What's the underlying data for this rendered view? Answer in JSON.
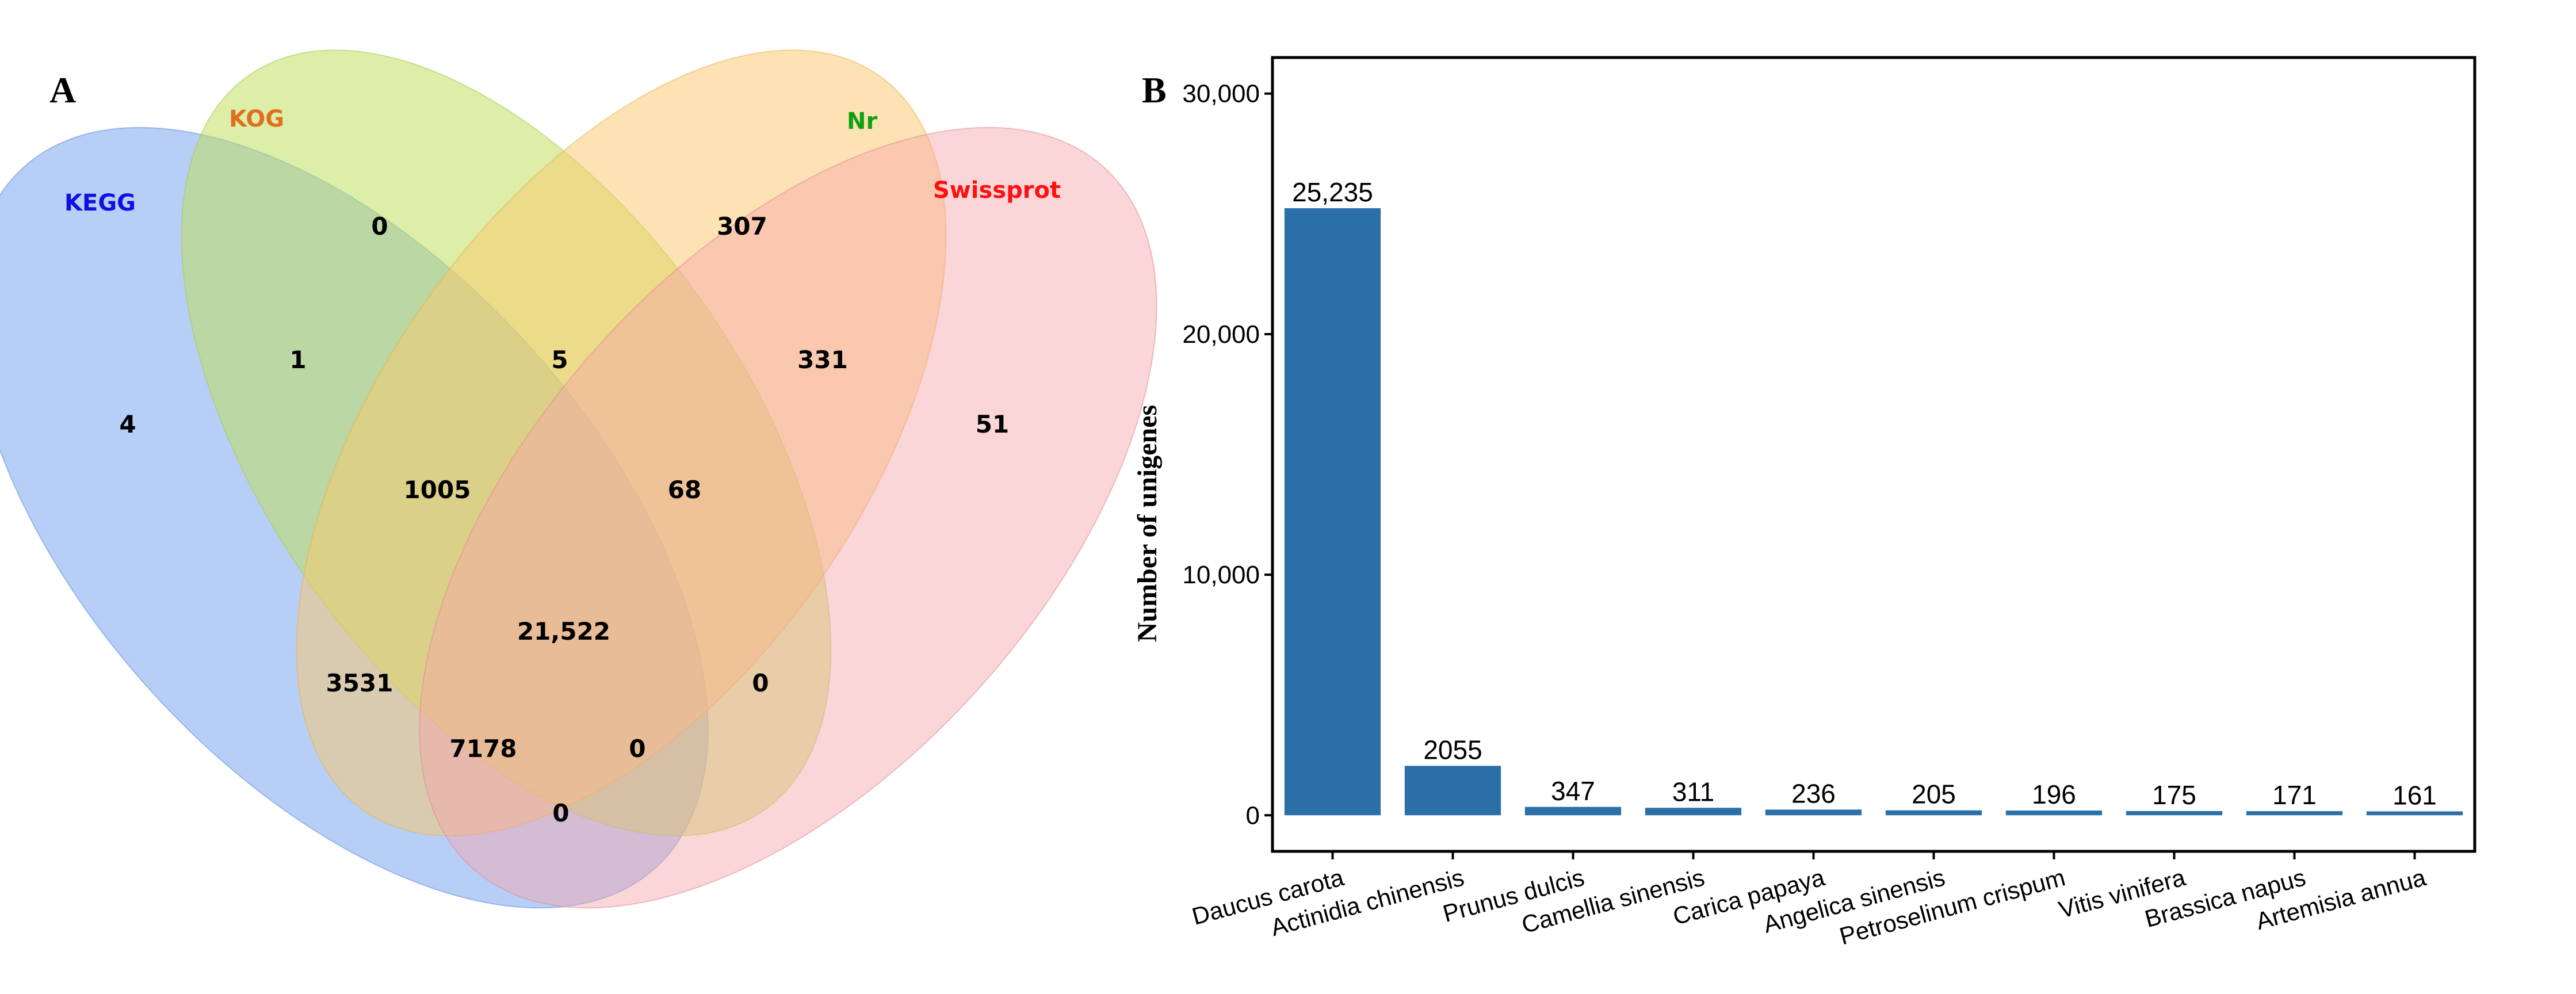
{
  "chart_data": [
    {
      "type": "venn",
      "panel": "A",
      "sets": [
        {
          "name": "KEGG",
          "color": "#1010e0",
          "fill": "#6fa0ef"
        },
        {
          "name": "KOG",
          "color": "#e07020",
          "fill": "#bfe060"
        },
        {
          "name": "Nr",
          "color": "#10a010",
          "fill": "#fbc86a"
        },
        {
          "name": "Swissprot",
          "color": "#ff1010",
          "fill": "#f7a4a8"
        }
      ],
      "regions": [
        {
          "sets": [
            "KEGG"
          ],
          "value": "4"
        },
        {
          "sets": [
            "KOG"
          ],
          "value": "0"
        },
        {
          "sets": [
            "Nr"
          ],
          "value": "307"
        },
        {
          "sets": [
            "Swissprot"
          ],
          "value": "51"
        },
        {
          "sets": [
            "KEGG",
            "KOG"
          ],
          "value": "1"
        },
        {
          "sets": [
            "KOG",
            "Nr"
          ],
          "value": "5"
        },
        {
          "sets": [
            "Nr",
            "Swissprot"
          ],
          "value": "331"
        },
        {
          "sets": [
            "KEGG",
            "KOG",
            "Nr"
          ],
          "value": "1005"
        },
        {
          "sets": [
            "KOG",
            "Nr",
            "Swissprot"
          ],
          "value": "68"
        },
        {
          "sets": [
            "KEGG",
            "KOG",
            "Nr",
            "Swissprot"
          ],
          "value": "21,522"
        },
        {
          "sets": [
            "KEGG",
            "Nr"
          ],
          "value": "3531"
        },
        {
          "sets": [
            "KOG",
            "Swissprot"
          ],
          "value": "0"
        },
        {
          "sets": [
            "KEGG",
            "Nr",
            "Swissprot"
          ],
          "value": "7178"
        },
        {
          "sets": [
            "KEGG",
            "KOG",
            "Swissprot"
          ],
          "value": "0"
        },
        {
          "sets": [
            "KEGG",
            "Swissprot"
          ],
          "value": "0"
        }
      ]
    },
    {
      "type": "bar",
      "panel": "B",
      "categories": [
        "Daucus carota",
        "Actinidia chinensis",
        "Prunus dulcis",
        "Camellia sinensis",
        "Carica papaya",
        "Angelica sinensis",
        "Petroselinum crispum",
        "Vitis vinifera",
        "Brassica napus",
        "Artemisia annua"
      ],
      "values": [
        25235,
        2055,
        347,
        311,
        236,
        205,
        196,
        175,
        171,
        161
      ],
      "value_labels": [
        "25,235",
        "2055",
        "347",
        "311",
        "236",
        "205",
        "196",
        "175",
        "171",
        "161"
      ],
      "ylabel": "Number of unigenes",
      "xlabel": "",
      "ylim": [
        -1500,
        31500
      ],
      "yticks": [
        0,
        10000,
        20000,
        30000
      ],
      "ytick_labels": [
        "0",
        "10,000",
        "20,000",
        "30,000"
      ],
      "bar_color": "#2a6fa8"
    }
  ]
}
